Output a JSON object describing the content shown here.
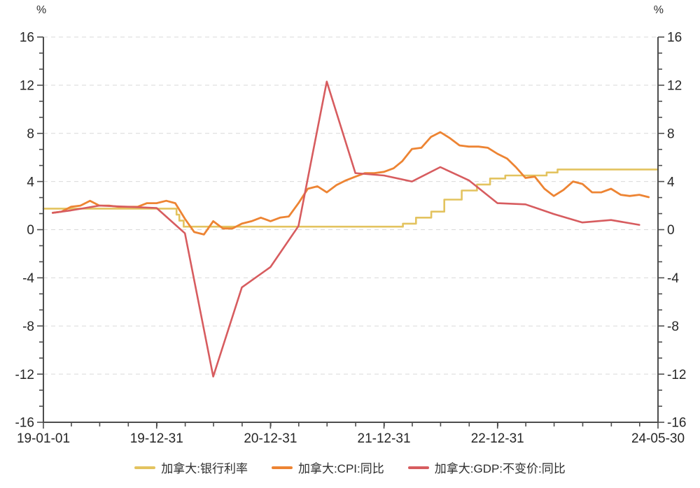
{
  "chart_data": {
    "type": "line",
    "unit_left": "%",
    "unit_right": "%",
    "x_range": [
      "2019-01-01",
      "2024-05-30"
    ],
    "ylim": [
      -16,
      16
    ],
    "y_ticks": [
      16,
      12,
      8,
      4,
      0,
      -4,
      -8,
      -12,
      -16
    ],
    "y_minor_divisions_per_major": 3,
    "x_minor_interval_months": 3,
    "grid": "horizontal-dashed",
    "legend_position": "bottom",
    "x_ticks": [
      {
        "label": "19-01-01",
        "date": "2019-01-01"
      },
      {
        "label": "19-12-31",
        "date": "2019-12-31"
      },
      {
        "label": "20-12-31",
        "date": "2020-12-31"
      },
      {
        "label": "21-12-31",
        "date": "2021-12-31"
      },
      {
        "label": "22-12-31",
        "date": "2022-12-31"
      },
      {
        "label": "24-05-30",
        "date": "2024-05-30"
      }
    ],
    "series": [
      {
        "name": "加拿大:银行利率",
        "color": "#E3C35F",
        "style": "step",
        "stroke_width": 2.6,
        "points": [
          [
            "2019-01-01",
            1.75
          ],
          [
            "2020-03-04",
            1.25
          ],
          [
            "2020-03-13",
            0.75
          ],
          [
            "2020-03-27",
            0.25
          ],
          [
            "2022-03-02",
            0.5
          ],
          [
            "2022-04-13",
            1.0
          ],
          [
            "2022-06-01",
            1.5
          ],
          [
            "2022-07-13",
            2.5
          ],
          [
            "2022-09-07",
            3.25
          ],
          [
            "2022-10-26",
            3.75
          ],
          [
            "2022-12-07",
            4.25
          ],
          [
            "2023-01-25",
            4.5
          ],
          [
            "2023-06-07",
            4.75
          ],
          [
            "2023-07-12",
            5.0
          ],
          [
            "2024-05-30",
            5.0
          ]
        ]
      },
      {
        "name": "加拿大:CPI:同比",
        "color": "#ED8433",
        "style": "line",
        "stroke_width": 2.8,
        "points": [
          [
            "2019-01-31",
            1.4
          ],
          [
            "2019-02-28",
            1.5
          ],
          [
            "2019-03-31",
            1.9
          ],
          [
            "2019-04-30",
            2.0
          ],
          [
            "2019-05-31",
            2.4
          ],
          [
            "2019-06-30",
            2.0
          ],
          [
            "2019-07-31",
            2.0
          ],
          [
            "2019-08-31",
            1.9
          ],
          [
            "2019-09-30",
            1.9
          ],
          [
            "2019-10-31",
            1.9
          ],
          [
            "2019-11-30",
            2.2
          ],
          [
            "2019-12-31",
            2.2
          ],
          [
            "2020-01-31",
            2.4
          ],
          [
            "2020-02-29",
            2.2
          ],
          [
            "2020-03-31",
            0.9
          ],
          [
            "2020-04-30",
            -0.2
          ],
          [
            "2020-05-31",
            -0.4
          ],
          [
            "2020-06-30",
            0.7
          ],
          [
            "2020-07-31",
            0.1
          ],
          [
            "2020-08-31",
            0.1
          ],
          [
            "2020-09-30",
            0.5
          ],
          [
            "2020-10-31",
            0.7
          ],
          [
            "2020-11-30",
            1.0
          ],
          [
            "2020-12-31",
            0.7
          ],
          [
            "2021-01-31",
            1.0
          ],
          [
            "2021-02-28",
            1.1
          ],
          [
            "2021-03-31",
            2.2
          ],
          [
            "2021-04-30",
            3.4
          ],
          [
            "2021-05-31",
            3.6
          ],
          [
            "2021-06-30",
            3.1
          ],
          [
            "2021-07-31",
            3.7
          ],
          [
            "2021-08-31",
            4.1
          ],
          [
            "2021-09-30",
            4.4
          ],
          [
            "2021-10-31",
            4.7
          ],
          [
            "2021-11-30",
            4.7
          ],
          [
            "2021-12-31",
            4.8
          ],
          [
            "2022-01-31",
            5.1
          ],
          [
            "2022-02-28",
            5.7
          ],
          [
            "2022-03-31",
            6.7
          ],
          [
            "2022-04-30",
            6.8
          ],
          [
            "2022-05-31",
            7.7
          ],
          [
            "2022-06-30",
            8.1
          ],
          [
            "2022-07-31",
            7.6
          ],
          [
            "2022-08-31",
            7.0
          ],
          [
            "2022-09-30",
            6.9
          ],
          [
            "2022-10-31",
            6.9
          ],
          [
            "2022-11-30",
            6.8
          ],
          [
            "2022-12-31",
            6.3
          ],
          [
            "2023-01-31",
            5.9
          ],
          [
            "2023-02-28",
            5.2
          ],
          [
            "2023-03-31",
            4.3
          ],
          [
            "2023-04-30",
            4.4
          ],
          [
            "2023-05-31",
            3.4
          ],
          [
            "2023-06-30",
            2.8
          ],
          [
            "2023-07-31",
            3.3
          ],
          [
            "2023-08-31",
            4.0
          ],
          [
            "2023-09-30",
            3.8
          ],
          [
            "2023-10-31",
            3.1
          ],
          [
            "2023-11-30",
            3.1
          ],
          [
            "2023-12-31",
            3.4
          ],
          [
            "2024-01-31",
            2.9
          ],
          [
            "2024-02-29",
            2.8
          ],
          [
            "2024-03-31",
            2.9
          ],
          [
            "2024-04-30",
            2.7
          ]
        ]
      },
      {
        "name": "加拿大:GDP:不变价:同比",
        "color": "#D75C5F",
        "style": "line",
        "stroke_width": 2.6,
        "points": [
          [
            "2019-01-31",
            1.4
          ],
          [
            "2019-03-31",
            1.6
          ],
          [
            "2019-06-30",
            2.0
          ],
          [
            "2019-09-30",
            1.9
          ],
          [
            "2019-12-31",
            1.8
          ],
          [
            "2020-03-31",
            -0.3
          ],
          [
            "2020-06-30",
            -12.2
          ],
          [
            "2020-09-30",
            -4.8
          ],
          [
            "2020-12-31",
            -3.1
          ],
          [
            "2021-03-31",
            0.3
          ],
          [
            "2021-06-30",
            12.3
          ],
          [
            "2021-09-30",
            4.7
          ],
          [
            "2021-12-31",
            4.5
          ],
          [
            "2022-03-31",
            4.0
          ],
          [
            "2022-06-30",
            5.2
          ],
          [
            "2022-09-30",
            4.1
          ],
          [
            "2022-12-31",
            2.2
          ],
          [
            "2023-03-31",
            2.1
          ],
          [
            "2023-06-30",
            1.3
          ],
          [
            "2023-09-30",
            0.6
          ],
          [
            "2023-12-31",
            0.8
          ],
          [
            "2024-03-31",
            0.4
          ]
        ]
      }
    ]
  }
}
